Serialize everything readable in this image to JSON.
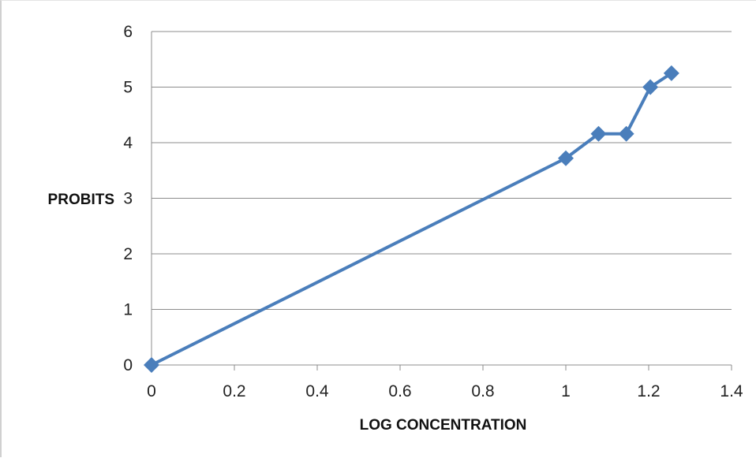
{
  "chart_data": {
    "type": "line",
    "title": "",
    "xlabel": "LOG CONCENTRATION",
    "ylabel": "PROBITS",
    "xlim": [
      0,
      1.4
    ],
    "ylim": [
      0,
      6
    ],
    "x_ticks": [
      "0",
      "0.2",
      "0.4",
      "0.6",
      "0.8",
      "1",
      "1.2",
      "1.4"
    ],
    "y_ticks": [
      "0",
      "1",
      "2",
      "3",
      "4",
      "5",
      "6"
    ],
    "grid": "horizontal",
    "legend": "none",
    "series": [
      {
        "color": "#4a7ebb",
        "marker": "diamond",
        "points": [
          {
            "x": 0,
            "y": 0
          },
          {
            "x": 1.0,
            "y": 3.72
          },
          {
            "x": 1.079,
            "y": 4.16
          },
          {
            "x": 1.146,
            "y": 4.16
          },
          {
            "x": 1.204,
            "y": 5.0
          },
          {
            "x": 1.255,
            "y": 5.25
          }
        ]
      }
    ]
  }
}
